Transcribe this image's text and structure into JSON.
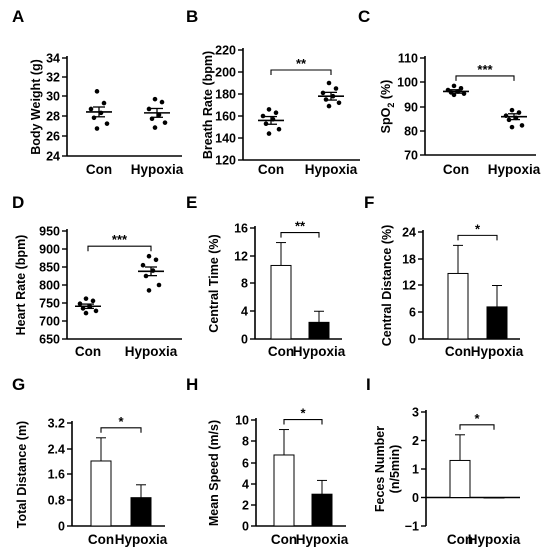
{
  "chart_data": [
    {
      "panel": "A",
      "type": "scatter",
      "ylabel": "Body Weight (g)",
      "yticks": [
        "24",
        "26",
        "28",
        "30",
        "32",
        "34"
      ],
      "ylim": [
        24,
        34
      ],
      "categories": [
        "Con",
        "Hypoxia"
      ],
      "points": [
        [
          30.6,
          29.4,
          28.8,
          28.4,
          27.9,
          27.3,
          26.8
        ],
        [
          29.8,
          29.5,
          28.8,
          28.2,
          27.8,
          27.4,
          26.9
        ]
      ],
      "mean": [
        28.5,
        28.4
      ],
      "sem": [
        0.5,
        0.45
      ],
      "significance": null
    },
    {
      "panel": "B",
      "type": "scatter",
      "ylabel": "Breath Rate (bpm)",
      "yticks": [
        "120",
        "140",
        "160",
        "180",
        "200",
        "220"
      ],
      "ylim": [
        120,
        220
      ],
      "categories": [
        "Con",
        "Hypoxia"
      ],
      "points": [
        [
          166,
          163,
          160,
          157,
          153,
          148,
          144
        ],
        [
          190,
          185,
          181,
          178,
          175,
          172,
          169
        ]
      ],
      "mean": [
        156,
        178
      ],
      "sem": [
        3.5,
        3.5
      ],
      "significance": "**"
    },
    {
      "panel": "C",
      "type": "scatter",
      "ylabel": "SpO2 (%)",
      "yticks": [
        "70",
        "80",
        "90",
        "100",
        "110"
      ],
      "ylim": [
        70,
        110
      ],
      "categories": [
        "Con",
        "Hypoxia"
      ],
      "points": [
        [
          98.5,
          97.5,
          96.8,
          96.2,
          95.8,
          95.3,
          94.8
        ],
        [
          88.5,
          87.5,
          86.2,
          85.3,
          84.5,
          82.2,
          81.5
        ]
      ],
      "mean": [
        96.2,
        85.8
      ],
      "sem": [
        0.7,
        1.2
      ],
      "significance": "***"
    },
    {
      "panel": "D",
      "type": "scatter",
      "ylabel": "Heart Rate (bpm)",
      "yticks": [
        "650",
        "700",
        "750",
        "800",
        "850",
        "900",
        "950"
      ],
      "ylim": [
        650,
        950
      ],
      "categories": [
        "Con",
        "Hypoxia"
      ],
      "points": [
        [
          762,
          756,
          748,
          740,
          735,
          728,
          722
        ],
        [
          880,
          870,
          855,
          840,
          825,
          800,
          785
        ]
      ],
      "mean": [
        741,
        838
      ],
      "sem": [
        6,
        12
      ],
      "significance": "***"
    },
    {
      "panel": "E",
      "type": "bar",
      "ylabel": "Central Time (%)",
      "yticks": [
        "0",
        "4",
        "8",
        "12",
        "16"
      ],
      "ylim": [
        0,
        16
      ],
      "categories": [
        "Con",
        "Hypoxia"
      ],
      "values": [
        10.6,
        2.4
      ],
      "sd": [
        3.3,
        1.6
      ],
      "significance": "**"
    },
    {
      "panel": "F",
      "type": "bar",
      "ylabel": "Central Distance (%)",
      "yticks": [
        "0",
        "6",
        "12",
        "18",
        "24"
      ],
      "ylim": [
        0,
        24
      ],
      "categories": [
        "Con",
        "Hypoxia"
      ],
      "values": [
        14.7,
        7.2
      ],
      "sd": [
        6.3,
        4.8
      ],
      "significance": "*"
    },
    {
      "panel": "G",
      "type": "bar",
      "ylabel": "Total Distance (m)",
      "yticks": [
        "0",
        "0.8",
        "1.6",
        "2.4",
        "3.2"
      ],
      "ylim": [
        0,
        3.2
      ],
      "categories": [
        "Con",
        "Hypoxia"
      ],
      "values": [
        2.02,
        0.88
      ],
      "sd": [
        0.72,
        0.4
      ],
      "significance": "*"
    },
    {
      "panel": "H",
      "type": "bar",
      "ylabel": "Mean Speed (m/s)",
      "yticks": [
        "0",
        "2",
        "4",
        "6",
        "8",
        "10"
      ],
      "ylim": [
        0,
        10
      ],
      "categories": [
        "Con",
        "Hypoxia"
      ],
      "values": [
        6.7,
        3.0
      ],
      "sd": [
        2.4,
        1.3
      ],
      "significance": "*"
    },
    {
      "panel": "I",
      "type": "bar",
      "ylabel": [
        "Feces Number",
        "(n/5min)"
      ],
      "yticks": [
        "−1",
        "0",
        "1",
        "2",
        "3"
      ],
      "ylim": [
        -1,
        3
      ],
      "categories": [
        "Con",
        "Hypoxia"
      ],
      "values": [
        1.3,
        0.0
      ],
      "sd": [
        0.9,
        0.0
      ],
      "significance": "*"
    }
  ],
  "colors": {
    "axis": "#000000",
    "con_bar": "#ffffff",
    "hypoxia_bar": "#000000",
    "points": "#000000"
  }
}
